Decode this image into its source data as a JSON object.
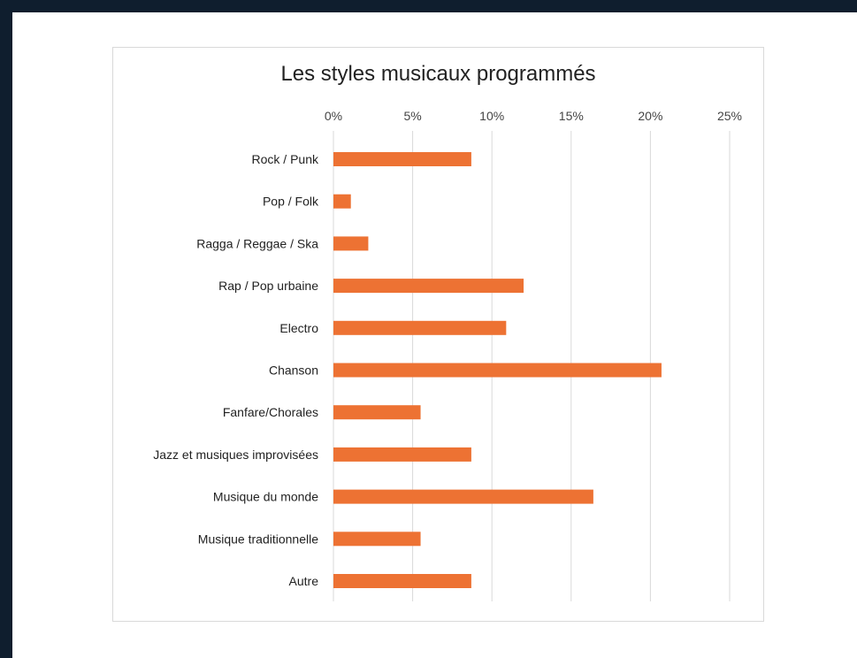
{
  "chart_data": {
    "type": "bar",
    "orientation": "horizontal",
    "title": "Les styles musicaux programmés",
    "xlabel": "",
    "ylabel": "",
    "xlim": [
      0,
      25
    ],
    "x_ticks": [
      "0%",
      "5%",
      "10%",
      "15%",
      "20%",
      "25%"
    ],
    "x_tick_values": [
      0,
      5,
      10,
      15,
      20,
      25
    ],
    "x_axis_position": "top",
    "grid": true,
    "legend": "none",
    "bar_color": "#ED7233",
    "categories": [
      "Rock / Punk",
      "Pop / Folk",
      "Ragga / Reggae / Ska",
      "Rap / Pop urbaine",
      "Electro",
      "Chanson",
      "Fanfare/Chorales",
      "Jazz et musiques improvisées",
      "Musique du monde",
      "Musique traditionnelle",
      "Autre"
    ],
    "values": [
      8.7,
      1.1,
      2.2,
      12.0,
      10.9,
      20.7,
      5.5,
      8.7,
      16.4,
      5.5,
      8.7
    ]
  },
  "colors": {
    "frame": "#0f1e2e",
    "bar": "#ED7233",
    "grid": "#d9d9d9"
  }
}
